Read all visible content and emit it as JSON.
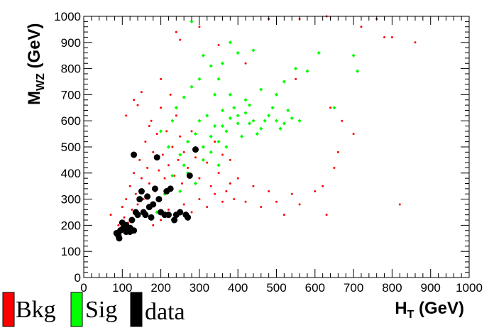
{
  "chart_data": {
    "type": "scatter",
    "title": "",
    "xlabel": "H",
    "xlabel_sub": "T",
    "xlabel_unit": " (GeV)",
    "ylabel": "M",
    "ylabel_sub": "WZ",
    "ylabel_unit": " (GeV)",
    "xlim": [
      0,
      1000
    ],
    "ylim": [
      0,
      1000
    ],
    "x_ticks": [
      "0",
      "100",
      "200",
      "300",
      "400",
      "500",
      "600",
      "700",
      "800",
      "900",
      "1000"
    ],
    "y_ticks": [
      "0",
      "100",
      "200",
      "300",
      "400",
      "500",
      "600",
      "700",
      "800",
      "900",
      "1000"
    ],
    "grid": false,
    "legend_position": "bottom-left",
    "series": [
      {
        "name": "Bkg",
        "color": "#ff0000",
        "marker": "dot",
        "points": [
          [
            70,
            240
          ],
          [
            85,
            160
          ],
          [
            90,
            200
          ],
          [
            95,
            180
          ],
          [
            100,
            270
          ],
          [
            105,
            230
          ],
          [
            110,
            300
          ],
          [
            115,
            210
          ],
          [
            120,
            350
          ],
          [
            125,
            260
          ],
          [
            130,
            400
          ],
          [
            135,
            320
          ],
          [
            140,
            280
          ],
          [
            145,
            450
          ],
          [
            150,
            380
          ],
          [
            155,
            300
          ],
          [
            160,
            520
          ],
          [
            165,
            420
          ],
          [
            170,
            360
          ],
          [
            175,
            600
          ],
          [
            180,
            480
          ],
          [
            185,
            330
          ],
          [
            190,
            550
          ],
          [
            195,
            410
          ],
          [
            200,
            650
          ],
          [
            205,
            470
          ],
          [
            210,
            380
          ],
          [
            215,
            560
          ],
          [
            220,
            430
          ],
          [
            225,
            700
          ],
          [
            230,
            500
          ],
          [
            235,
            390
          ],
          [
            240,
            620
          ],
          [
            245,
            450
          ],
          [
            250,
            540
          ],
          [
            255,
            360
          ],
          [
            260,
            480
          ],
          [
            270,
            420
          ],
          [
            280,
            560
          ],
          [
            290,
            460
          ],
          [
            300,
            380
          ],
          [
            310,
            500
          ],
          [
            320,
            440
          ],
          [
            330,
            350
          ],
          [
            340,
            520
          ],
          [
            350,
            400
          ],
          [
            360,
            470
          ],
          [
            370,
            330
          ],
          [
            380,
            450
          ],
          [
            390,
            300
          ],
          [
            400,
            380
          ],
          [
            420,
            290
          ],
          [
            440,
            350
          ],
          [
            460,
            270
          ],
          [
            480,
            330
          ],
          [
            500,
            290
          ],
          [
            520,
            240
          ],
          [
            540,
            320
          ],
          [
            560,
            280
          ],
          [
            600,
            330
          ],
          [
            620,
            350
          ],
          [
            630,
            240
          ],
          [
            650,
            420
          ],
          [
            670,
            600
          ],
          [
            700,
            550
          ],
          [
            720,
            960
          ],
          [
            760,
            990
          ],
          [
            780,
            920
          ],
          [
            820,
            280
          ],
          [
            860,
            900
          ],
          [
            800,
            920
          ],
          [
            630,
            1000
          ],
          [
            480,
            990
          ],
          [
            560,
            990
          ],
          [
            240,
            940
          ],
          [
            300,
            960
          ],
          [
            250,
            910
          ],
          [
            350,
            890
          ],
          [
            420,
            820
          ],
          [
            550,
            760
          ],
          [
            640,
            650
          ],
          [
            660,
            480
          ],
          [
            150,
            710
          ],
          [
            140,
            660
          ],
          [
            200,
            760
          ],
          [
            170,
            580
          ],
          [
            110,
            620
          ],
          [
            130,
            680
          ],
          [
            160,
            250
          ],
          [
            180,
            200
          ],
          [
            200,
            220
          ],
          [
            220,
            260
          ],
          [
            240,
            230
          ],
          [
            260,
            280
          ],
          [
            280,
            250
          ],
          [
            300,
            300
          ],
          [
            320,
            270
          ],
          [
            340,
            320
          ],
          [
            360,
            290
          ],
          [
            380,
            360
          ]
        ]
      },
      {
        "name": "Sig",
        "color": "#00ff00",
        "marker": "diamond",
        "points": [
          [
            300,
            600
          ],
          [
            320,
            620
          ],
          [
            340,
            580
          ],
          [
            360,
            640
          ],
          [
            380,
            610
          ],
          [
            400,
            590
          ],
          [
            420,
            630
          ],
          [
            440,
            600
          ],
          [
            460,
            570
          ],
          [
            480,
            620
          ],
          [
            500,
            600
          ],
          [
            520,
            590
          ],
          [
            540,
            610
          ],
          [
            560,
            600
          ],
          [
            380,
            900
          ],
          [
            330,
            810
          ],
          [
            350,
            760
          ],
          [
            380,
            700
          ],
          [
            420,
            680
          ],
          [
            460,
            720
          ],
          [
            500,
            700
          ],
          [
            520,
            750
          ],
          [
            550,
            800
          ],
          [
            580,
            790
          ],
          [
            610,
            860
          ],
          [
            650,
            650
          ],
          [
            700,
            850
          ],
          [
            710,
            790
          ],
          [
            280,
            980
          ],
          [
            310,
            850
          ],
          [
            250,
            470
          ],
          [
            260,
            430
          ],
          [
            270,
            520
          ],
          [
            290,
            550
          ],
          [
            310,
            500
          ],
          [
            330,
            540
          ],
          [
            350,
            520
          ],
          [
            370,
            560
          ],
          [
            390,
            650
          ],
          [
            410,
            540
          ],
          [
            430,
            660
          ],
          [
            450,
            550
          ],
          [
            470,
            600
          ],
          [
            490,
            650
          ],
          [
            510,
            570
          ],
          [
            530,
            640
          ],
          [
            400,
            860
          ],
          [
            440,
            870
          ],
          [
            360,
            820
          ],
          [
            300,
            760
          ],
          [
            200,
            560
          ],
          [
            220,
            500
          ],
          [
            230,
            600
          ],
          [
            240,
            650
          ],
          [
            260,
            690
          ],
          [
            280,
            730
          ],
          [
            340,
            700
          ],
          [
            360,
            580
          ],
          [
            400,
            620
          ],
          [
            430,
            590
          ],
          [
            190,
            250
          ],
          [
            210,
            320
          ],
          [
            230,
            390
          ],
          [
            250,
            330
          ],
          [
            270,
            400
          ],
          [
            290,
            360
          ],
          [
            310,
            450
          ],
          [
            330,
            480
          ],
          [
            350,
            430
          ],
          [
            370,
            500
          ]
        ]
      },
      {
        "name": "data",
        "color": "#000000",
        "marker": "circle",
        "points": [
          [
            85,
            170
          ],
          [
            90,
            160
          ],
          [
            92,
            150
          ],
          [
            95,
            180
          ],
          [
            100,
            210
          ],
          [
            105,
            195
          ],
          [
            110,
            200
          ],
          [
            115,
            185
          ],
          [
            120,
            190
          ],
          [
            125,
            220
          ],
          [
            130,
            470
          ],
          [
            135,
            250
          ],
          [
            140,
            240
          ],
          [
            145,
            300
          ],
          [
            150,
            330
          ],
          [
            155,
            250
          ],
          [
            160,
            240
          ],
          [
            165,
            310
          ],
          [
            170,
            270
          ],
          [
            175,
            230
          ],
          [
            180,
            280
          ],
          [
            185,
            340
          ],
          [
            190,
            460
          ],
          [
            195,
            300
          ],
          [
            200,
            250
          ],
          [
            210,
            240
          ],
          [
            215,
            330
          ],
          [
            220,
            240
          ],
          [
            225,
            340
          ],
          [
            235,
            220
          ],
          [
            240,
            240
          ],
          [
            250,
            250
          ],
          [
            265,
            240
          ],
          [
            270,
            230
          ],
          [
            275,
            390
          ],
          [
            290,
            490
          ],
          [
            100,
            185
          ],
          [
            110,
            175
          ],
          [
            120,
            175
          ],
          [
            130,
            180
          ]
        ]
      }
    ]
  }
}
